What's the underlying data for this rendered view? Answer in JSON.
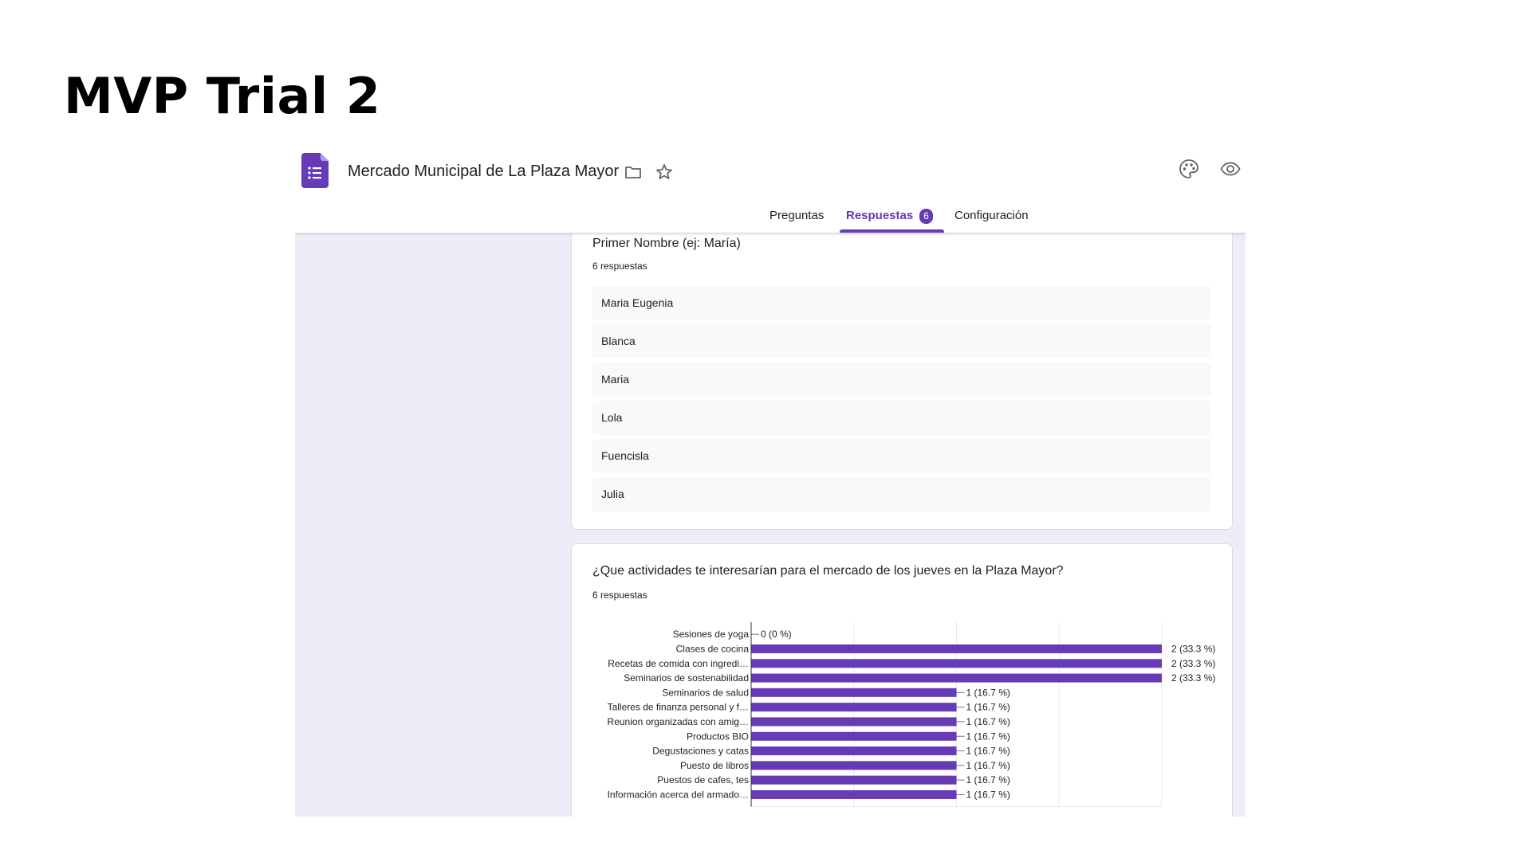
{
  "slide": {
    "title": "MVP Trial 2"
  },
  "form": {
    "title": "Mercado Municipal de La Plaza Mayor",
    "tabs": [
      {
        "label": "Preguntas"
      },
      {
        "label": "Respuestas",
        "badge": "6",
        "active": true
      },
      {
        "label": "Configuración"
      }
    ],
    "accent_color": "#673ab7",
    "icons": [
      "forms-app-icon",
      "folder-icon",
      "star-icon",
      "palette-icon",
      "eye-icon"
    ]
  },
  "questions": [
    {
      "title": "Primer Nombre (ej: María)",
      "count": "6 respuestas",
      "answers": [
        "Maria Eugenia",
        "Blanca",
        "Maria",
        "Lola",
        "Fuencisla",
        "Julia"
      ]
    },
    {
      "title": "¿Que actividades te interesarían para el mercado de los jueves en la Plaza Mayor?",
      "count": "6 respuestas"
    }
  ],
  "chart_data": {
    "type": "bar",
    "orientation": "horizontal",
    "categories": [
      "Sesiones de yoga",
      "Clases de cocina",
      "Recetas de comida con ingredi…",
      "Seminarios de sostenabilidad",
      "Seminarios de salud",
      "Talleres de finanza personal y f…",
      "Reunion organizadas con amig…",
      "Productos BIO",
      "Degustaciones y catas",
      "Puesto de libros",
      "Puestos de cafes, tes",
      "Información acerca del armado…"
    ],
    "values": [
      0,
      2,
      2,
      2,
      1,
      1,
      1,
      1,
      1,
      1,
      1,
      1
    ],
    "labels": [
      "0 (0 %)",
      "2 (33.3 %)",
      "2 (33.3 %)",
      "2 (33.3 %)",
      "1 (16.7 %)",
      "1 (16.7 %)",
      "1 (16.7 %)",
      "1 (16.7 %)",
      "1 (16.7 %)",
      "1 (16.7 %)",
      "1 (16.7 %)",
      "1 (16.7 %)"
    ],
    "xlim": [
      0,
      2
    ],
    "grid": true,
    "bar_color": "#673ab7"
  }
}
